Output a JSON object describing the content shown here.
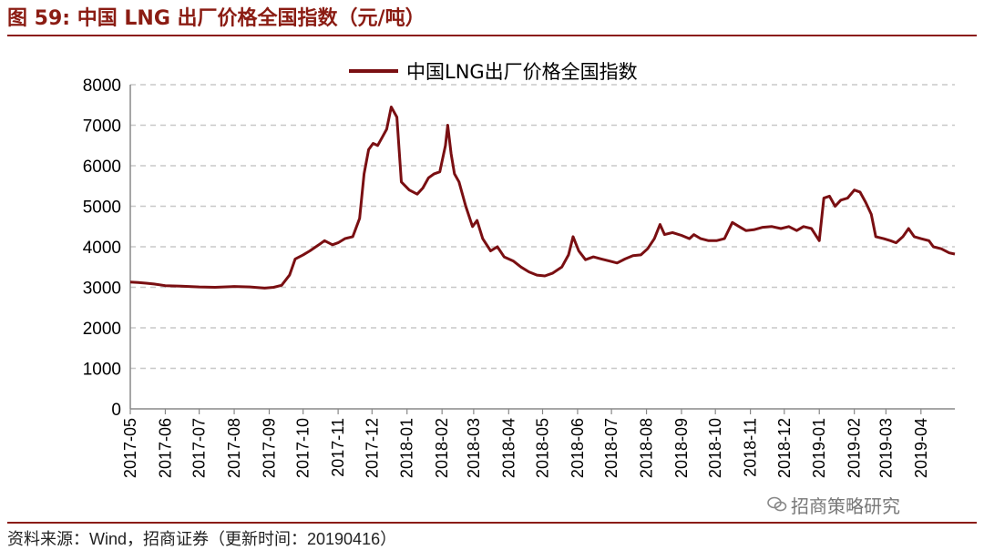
{
  "header": {
    "figure_title": "图 59:  中国 LNG 出厂价格全国指数（元/吨）"
  },
  "footer": {
    "source": "资料来源：Wind，招商证券（更新时间：20190416）",
    "watermark": "招商策略研究",
    "watermark_icon": "wechat-icon"
  },
  "colors": {
    "accent": "#8b1c13",
    "series": "#7a0f12",
    "grid": "#c8c8c8"
  },
  "chart_data": {
    "type": "line",
    "title": "",
    "xlabel": "",
    "ylabel": "",
    "ylim": [
      0,
      8000
    ],
    "yticks": [
      0,
      1000,
      2000,
      3000,
      4000,
      5000,
      6000,
      7000,
      8000
    ],
    "xticks": [
      "2017-05",
      "2017-06",
      "2017-07",
      "2017-08",
      "2017-09",
      "2017-10",
      "2017-11",
      "2017-12",
      "2018-01",
      "2018-02",
      "2018-03",
      "2018-04",
      "2018-05",
      "2018-06",
      "2018-07",
      "2018-08",
      "2018-09",
      "2018-10",
      "2018-11",
      "2018-12",
      "2019-01",
      "2019-02",
      "2019-03",
      "2019-04"
    ],
    "grid": "horizontal dashed",
    "legend_position": "top-center",
    "series": [
      {
        "name": "中国LNG出厂价格全国指数",
        "points": [
          [
            "2017-05-01",
            3130
          ],
          [
            "2017-05-08",
            3120
          ],
          [
            "2017-05-15",
            3100
          ],
          [
            "2017-05-22",
            3080
          ],
          [
            "2017-06-01",
            3040
          ],
          [
            "2017-06-15",
            3030
          ],
          [
            "2017-07-01",
            3010
          ],
          [
            "2017-07-15",
            3000
          ],
          [
            "2017-08-01",
            3020
          ],
          [
            "2017-08-15",
            3010
          ],
          [
            "2017-08-28",
            2980
          ],
          [
            "2017-09-05",
            3000
          ],
          [
            "2017-09-12",
            3050
          ],
          [
            "2017-09-19",
            3300
          ],
          [
            "2017-09-24",
            3700
          ],
          [
            "2017-10-01",
            3800
          ],
          [
            "2017-10-07",
            3900
          ],
          [
            "2017-10-15",
            4050
          ],
          [
            "2017-10-20",
            4150
          ],
          [
            "2017-10-27",
            4050
          ],
          [
            "2017-11-01",
            4100
          ],
          [
            "2017-11-07",
            4200
          ],
          [
            "2017-11-14",
            4250
          ],
          [
            "2017-11-20",
            4700
          ],
          [
            "2017-11-24",
            5800
          ],
          [
            "2017-11-28",
            6400
          ],
          [
            "2017-12-02",
            6550
          ],
          [
            "2017-12-06",
            6500
          ],
          [
            "2017-12-10",
            6700
          ],
          [
            "2017-12-14",
            6900
          ],
          [
            "2017-12-18",
            7450
          ],
          [
            "2017-12-23",
            7200
          ],
          [
            "2017-12-27",
            5600
          ],
          [
            "2018-01-03",
            5400
          ],
          [
            "2018-01-10",
            5300
          ],
          [
            "2018-01-15",
            5450
          ],
          [
            "2018-01-20",
            5700
          ],
          [
            "2018-01-25",
            5800
          ],
          [
            "2018-01-30",
            5850
          ],
          [
            "2018-02-04",
            6500
          ],
          [
            "2018-02-06",
            7000
          ],
          [
            "2018-02-09",
            6300
          ],
          [
            "2018-02-12",
            5800
          ],
          [
            "2018-02-16",
            5600
          ],
          [
            "2018-02-22",
            5000
          ],
          [
            "2018-02-28",
            4500
          ],
          [
            "2018-03-04",
            4650
          ],
          [
            "2018-03-09",
            4200
          ],
          [
            "2018-03-16",
            3900
          ],
          [
            "2018-03-22",
            4000
          ],
          [
            "2018-03-28",
            3750
          ],
          [
            "2018-04-05",
            3650
          ],
          [
            "2018-04-12",
            3500
          ],
          [
            "2018-04-19",
            3380
          ],
          [
            "2018-04-26",
            3300
          ],
          [
            "2018-05-03",
            3280
          ],
          [
            "2018-05-10",
            3350
          ],
          [
            "2018-05-18",
            3500
          ],
          [
            "2018-05-24",
            3800
          ],
          [
            "2018-05-28",
            4250
          ],
          [
            "2018-06-02",
            3900
          ],
          [
            "2018-06-08",
            3680
          ],
          [
            "2018-06-15",
            3750
          ],
          [
            "2018-06-22",
            3700
          ],
          [
            "2018-06-29",
            3650
          ],
          [
            "2018-07-06",
            3600
          ],
          [
            "2018-07-13",
            3700
          ],
          [
            "2018-07-20",
            3780
          ],
          [
            "2018-07-27",
            3800
          ],
          [
            "2018-08-02",
            3950
          ],
          [
            "2018-08-08",
            4200
          ],
          [
            "2018-08-13",
            4550
          ],
          [
            "2018-08-17",
            4300
          ],
          [
            "2018-08-24",
            4350
          ],
          [
            "2018-09-01",
            4280
          ],
          [
            "2018-09-08",
            4200
          ],
          [
            "2018-09-12",
            4300
          ],
          [
            "2018-09-18",
            4200
          ],
          [
            "2018-09-25",
            4150
          ],
          [
            "2018-10-02",
            4150
          ],
          [
            "2018-10-09",
            4200
          ],
          [
            "2018-10-16",
            4600
          ],
          [
            "2018-10-22",
            4500
          ],
          [
            "2018-10-28",
            4400
          ],
          [
            "2018-11-04",
            4420
          ],
          [
            "2018-11-12",
            4480
          ],
          [
            "2018-11-20",
            4500
          ],
          [
            "2018-11-28",
            4450
          ],
          [
            "2018-12-05",
            4500
          ],
          [
            "2018-12-12",
            4400
          ],
          [
            "2018-12-18",
            4500
          ],
          [
            "2018-12-25",
            4450
          ],
          [
            "2019-01-01",
            4150
          ],
          [
            "2019-01-05",
            5200
          ],
          [
            "2019-01-10",
            5250
          ],
          [
            "2019-01-15",
            5000
          ],
          [
            "2019-01-20",
            5150
          ],
          [
            "2019-01-26",
            5200
          ],
          [
            "2019-02-01",
            5400
          ],
          [
            "2019-02-06",
            5350
          ],
          [
            "2019-02-11",
            5100
          ],
          [
            "2019-02-16",
            4800
          ],
          [
            "2019-02-20",
            4250
          ],
          [
            "2019-02-27",
            4200
          ],
          [
            "2019-03-05",
            4150
          ],
          [
            "2019-03-10",
            4100
          ],
          [
            "2019-03-16",
            4250
          ],
          [
            "2019-03-21",
            4450
          ],
          [
            "2019-03-26",
            4250
          ],
          [
            "2019-04-01",
            4200
          ],
          [
            "2019-04-08",
            4150
          ],
          [
            "2019-04-12",
            4000
          ],
          [
            "2019-04-19",
            3950
          ],
          [
            "2019-04-26",
            3850
          ],
          [
            "2019-05-01",
            3820
          ]
        ]
      }
    ]
  }
}
